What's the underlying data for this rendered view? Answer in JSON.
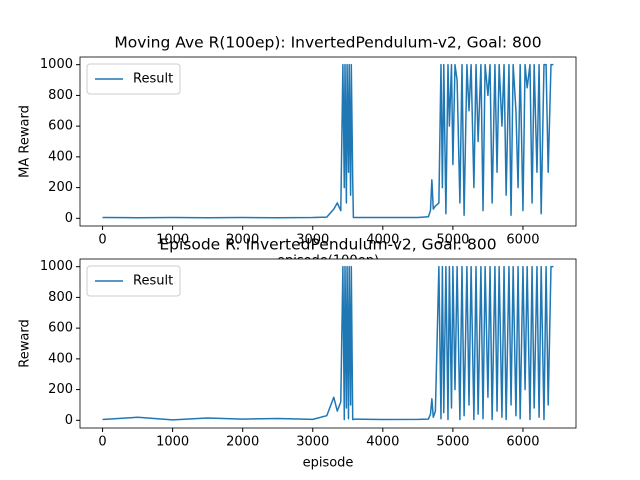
{
  "chart_data": [
    {
      "type": "line",
      "title": "Moving Ave R(100ep): InvertedPendulum-v2, Goal: 800",
      "x_label": "episode(100ep)",
      "y_label": "MA Reward",
      "x": [
        0,
        500,
        1000,
        1500,
        2000,
        2500,
        3000,
        3200,
        3300,
        3350,
        3400,
        3430,
        3450,
        3460,
        3480,
        3490,
        3510,
        3520,
        3540,
        3550,
        3570,
        3580,
        3600,
        4000,
        4500,
        4650,
        4680,
        4700,
        4720,
        4750,
        4800,
        4830,
        4850,
        4870,
        4900,
        4930,
        4950,
        4980,
        5000,
        5030,
        5060,
        5100,
        5130,
        5160,
        5200,
        5230,
        5260,
        5300,
        5330,
        5360,
        5400,
        5430,
        5460,
        5500,
        5530,
        5560,
        5600,
        5630,
        5660,
        5700,
        5730,
        5760,
        5800,
        5830,
        5860,
        5900,
        5930,
        5960,
        6000,
        6030,
        6060,
        6100,
        6130,
        6160,
        6200,
        6230,
        6260,
        6300,
        6330,
        6360,
        6400,
        6435
      ],
      "series": [
        {
          "name": "Result",
          "color": "#1f77b4",
          "values": [
            5,
            4,
            5,
            4,
            5,
            4,
            5,
            8,
            60,
            100,
            50,
            1000,
            200,
            1000,
            100,
            1000,
            300,
            1000,
            150,
            1000,
            250,
            5,
            5,
            5,
            5,
            10,
            50,
            250,
            60,
            80,
            100,
            1000,
            200,
            1000,
            30,
            1000,
            600,
            1000,
            350,
            1000,
            900,
            100,
            1000,
            20,
            1000,
            700,
            1000,
            200,
            1000,
            500,
            1000,
            50,
            1000,
            800,
            1000,
            100,
            1000,
            300,
            1000,
            600,
            1000,
            150,
            1000,
            20,
            1000,
            700,
            200,
            1000,
            50,
            1000,
            850,
            1000,
            100,
            1000,
            300,
            1000,
            30,
            1000,
            1000,
            300,
            1000,
            1000
          ]
        }
      ],
      "xlim": [
        -322,
        6757
      ],
      "ylim": [
        -50,
        1050
      ],
      "xticks": [
        0,
        1000,
        2000,
        3000,
        4000,
        5000,
        6000
      ],
      "yticks": [
        0,
        200,
        400,
        600,
        800,
        1000
      ],
      "legend": "upper left"
    },
    {
      "type": "line",
      "title": "Episode R: InvertedPendulum-v2, Goal: 800",
      "x_label": "episode",
      "y_label": "Reward",
      "x": [
        0,
        500,
        1000,
        1500,
        2000,
        2500,
        3000,
        3200,
        3300,
        3350,
        3400,
        3430,
        3450,
        3460,
        3480,
        3490,
        3510,
        3520,
        3540,
        3550,
        3570,
        3580,
        3600,
        4000,
        4500,
        4650,
        4680,
        4700,
        4720,
        4750,
        4800,
        4830,
        4850,
        4870,
        4900,
        4930,
        4950,
        4980,
        5000,
        5030,
        5060,
        5100,
        5130,
        5160,
        5200,
        5230,
        5260,
        5300,
        5330,
        5360,
        5400,
        5430,
        5460,
        5500,
        5530,
        5560,
        5600,
        5630,
        5660,
        5700,
        5730,
        5760,
        5800,
        5830,
        5860,
        5900,
        5930,
        5960,
        6000,
        6030,
        6060,
        6100,
        6130,
        6160,
        6200,
        6230,
        6260,
        6300,
        6330,
        6360,
        6400,
        6435
      ],
      "series": [
        {
          "name": "Result",
          "color": "#1f77b4",
          "values": [
            5,
            20,
            3,
            15,
            8,
            12,
            6,
            30,
            150,
            60,
            120,
            1000,
            5,
            1000,
            80,
            1000,
            10,
            1000,
            100,
            1000,
            5,
            5,
            8,
            5,
            6,
            8,
            40,
            140,
            20,
            60,
            1000,
            10,
            1000,
            50,
            1000,
            5,
            1000,
            80,
            1000,
            200,
            1000,
            5,
            1000,
            30,
            1000,
            100,
            1000,
            5,
            1000,
            40,
            1000,
            10,
            1000,
            150,
            1000,
            5,
            1000,
            60,
            1000,
            20,
            1000,
            5,
            1000,
            100,
            1000,
            30,
            1000,
            10,
            1000,
            200,
            1000,
            5,
            1000,
            80,
            1000,
            20,
            1000,
            5,
            1000,
            100,
            1000,
            1000
          ]
        }
      ],
      "xlim": [
        -322,
        6757
      ],
      "ylim": [
        -50,
        1050
      ],
      "xticks": [
        0,
        1000,
        2000,
        3000,
        4000,
        5000,
        6000
      ],
      "yticks": [
        0,
        200,
        400,
        600,
        800,
        1000
      ],
      "legend": "upper left"
    }
  ]
}
